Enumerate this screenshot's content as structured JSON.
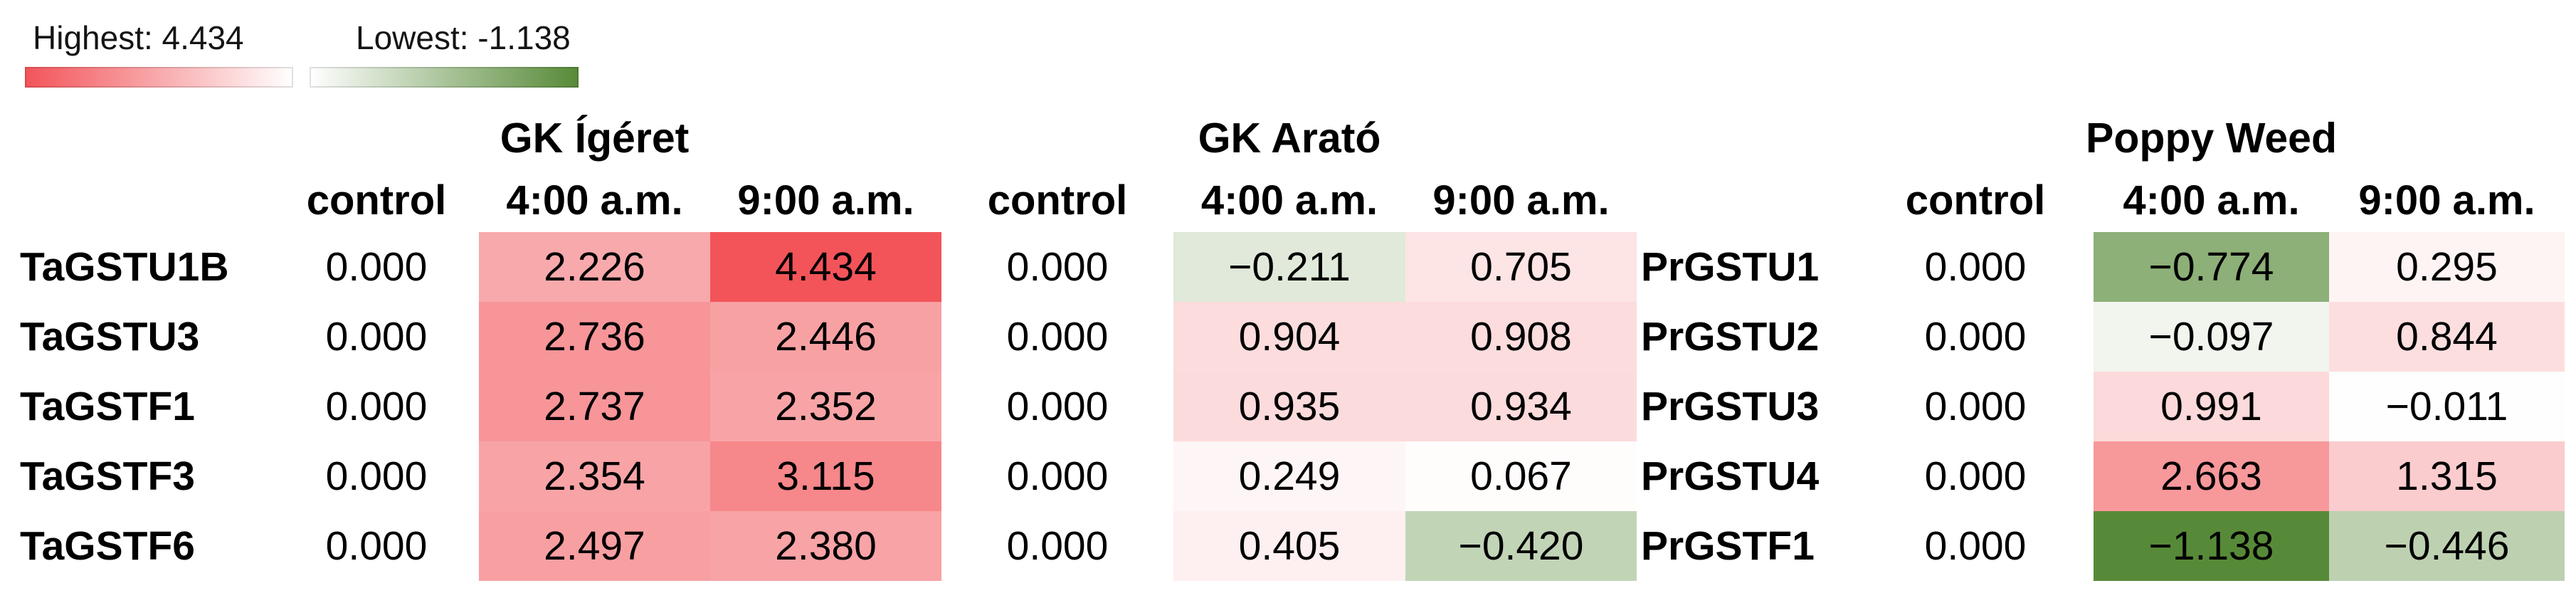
{
  "legend": {
    "highest_label": "Highest: 4.434",
    "lowest_label": "Lowest: -1.138",
    "high_color": "#f25459",
    "mid_color": "#ffffff",
    "low_color": "#578a38"
  },
  "chart_data": {
    "type": "heatmap",
    "title": "",
    "vmax": 4.434,
    "vmin": -1.138,
    "value_format": "3-decimals",
    "legend_position": "top-left",
    "column_headers": [
      "control",
      "4:00 a.m.",
      "9:00 a.m."
    ],
    "left_row_labels": [
      "TaGSTU1B",
      "TaGSTU3",
      "TaGSTF1",
      "TaGSTF3",
      "TaGSTF6"
    ],
    "right_row_labels": [
      "PrGSTU1",
      "PrGSTU2",
      "PrGSTU3",
      "PrGSTU4",
      "PrGSTF1"
    ],
    "groups": [
      {
        "title": "GK Ígéret",
        "row_labels_ref": "left_row_labels",
        "values": [
          [
            0.0,
            2.226,
            4.434
          ],
          [
            0.0,
            2.736,
            2.446
          ],
          [
            0.0,
            2.737,
            2.352
          ],
          [
            0.0,
            2.354,
            3.115
          ],
          [
            0.0,
            2.497,
            2.38
          ]
        ]
      },
      {
        "title": "GK Arató",
        "row_labels_ref": "left_row_labels",
        "values": [
          [
            0.0,
            -0.211,
            0.705
          ],
          [
            0.0,
            0.904,
            0.908
          ],
          [
            0.0,
            0.935,
            0.934
          ],
          [
            0.0,
            0.249,
            0.067
          ],
          [
            0.0,
            0.405,
            -0.42
          ]
        ]
      },
      {
        "title": "Poppy Weed",
        "row_labels_ref": "right_row_labels",
        "values": [
          [
            0.0,
            -0.774,
            0.295
          ],
          [
            0.0,
            -0.097,
            0.844
          ],
          [
            0.0,
            0.991,
            -0.011
          ],
          [
            0.0,
            2.663,
            1.315
          ],
          [
            0.0,
            -1.138,
            -0.446
          ]
        ]
      }
    ]
  }
}
